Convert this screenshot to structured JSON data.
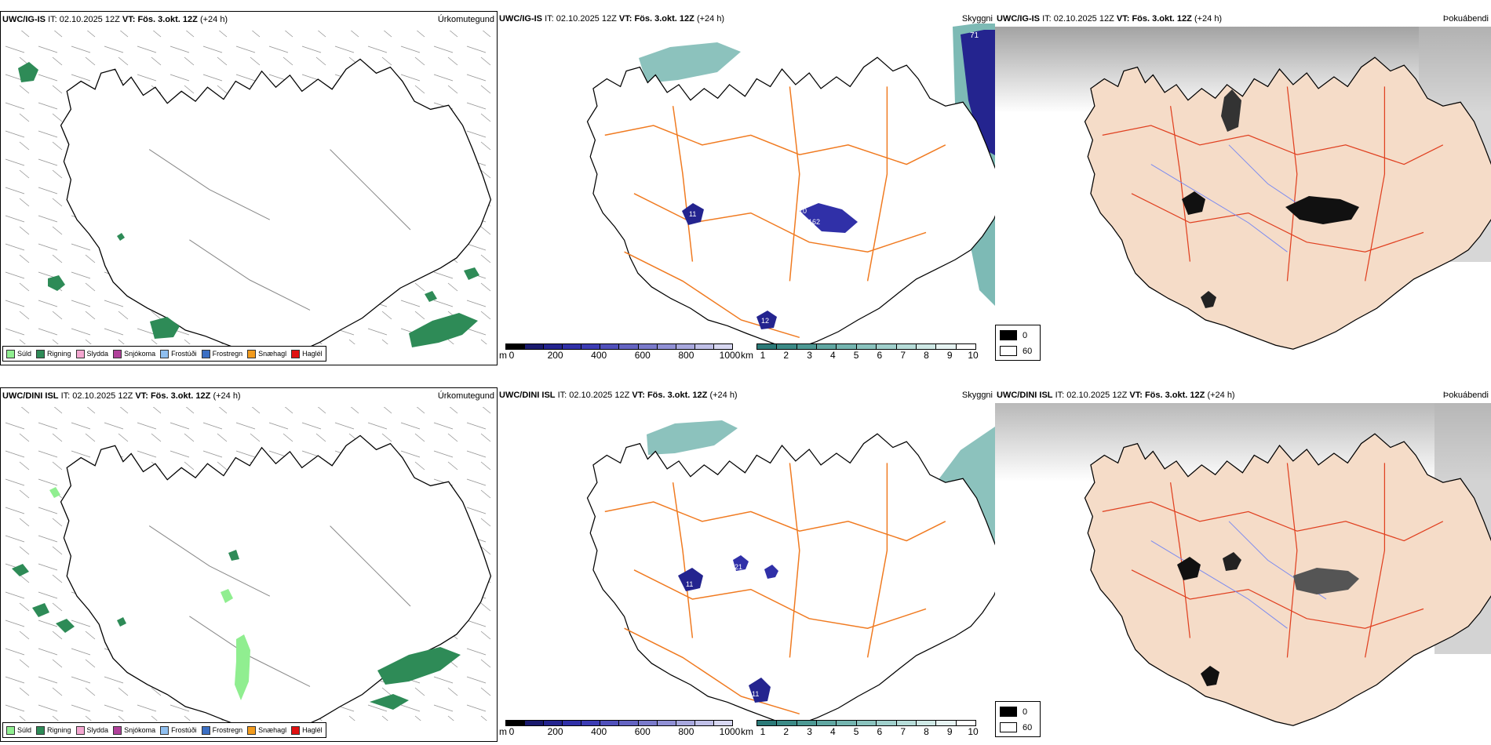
{
  "rows": [
    {
      "model": "UWC/IG-IS",
      "it_label": "IT:",
      "it_value": "02.10.2025 12Z",
      "vt_label": "VT:",
      "vt_value": "Fös. 3.okt. 12Z",
      "lead": "(+24 h)"
    },
    {
      "model": "UWC/DINI ISL",
      "it_label": "IT:",
      "it_value": "02.10.2025 12Z",
      "vt_label": "VT:",
      "vt_value": "Fös. 3.okt. 12Z",
      "lead": "(+24 h)"
    }
  ],
  "panel_titles": {
    "precip": "Úrkomutegund",
    "visibility": "Skyggni",
    "fog": "Þokuábendi"
  },
  "precip_legend": [
    {
      "label": "Súld",
      "color": "#90ee90"
    },
    {
      "label": "Rigning",
      "color": "#2e8b57"
    },
    {
      "label": "Slydda",
      "color": "#f4a6d0"
    },
    {
      "label": "Snjókoma",
      "color": "#b0409a"
    },
    {
      "label": "Frostúði",
      "color": "#8fbfef"
    },
    {
      "label": "Frostregn",
      "color": "#3b6fc4"
    },
    {
      "label": "Snæhagl",
      "color": "#f29b1d"
    },
    {
      "label": "Haglél",
      "color": "#e01010"
    }
  ],
  "ceiling_scale": {
    "unit": "m",
    "ticks": [
      "0",
      "200",
      "400",
      "600",
      "800",
      "1000"
    ],
    "colors": [
      "#000000",
      "#1a1a6e",
      "#24248f",
      "#3030a8",
      "#3c3cb4",
      "#5050bb",
      "#6464c2",
      "#7a7acb",
      "#9090d5",
      "#a8a8de",
      "#c0c0e8",
      "#d8d8f2"
    ]
  },
  "visibility_scale": {
    "unit": "km",
    "ticks": [
      "1",
      "2",
      "3",
      "4",
      "5",
      "6",
      "7",
      "8",
      "9",
      "10"
    ],
    "colors": [
      "#2b7a78",
      "#3b8a86",
      "#4d9994",
      "#60a7a2",
      "#74b5b0",
      "#8ac3be",
      "#a0d0cc",
      "#b7ddd9",
      "#cfe9e6",
      "#e7f4f3",
      "#ffffff"
    ]
  },
  "fog_scale": {
    "high": "0",
    "low": "60"
  },
  "station_labels": {
    "top_vis_edge": "71",
    "top_glacier_west": "11",
    "top_glacier_east": "162",
    "top_glacier_east2": "10",
    "top_south": "12",
    "bot_west": "11",
    "bot_south": "11",
    "bot_mid": "21"
  }
}
